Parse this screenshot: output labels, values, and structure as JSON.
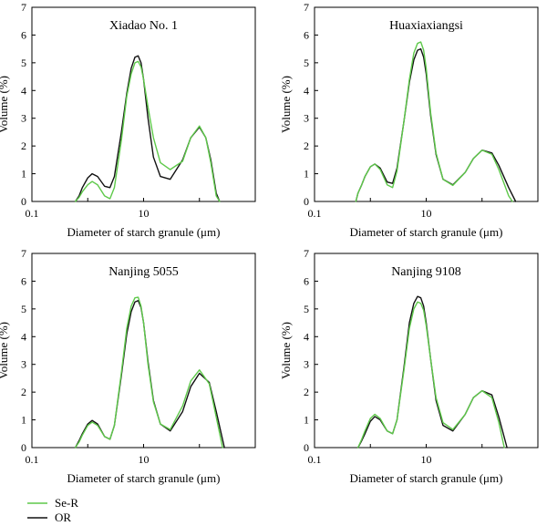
{
  "figure": {
    "series_colors": {
      "Se-R": "#5ec94a",
      "OR": "#111111"
    },
    "legend": [
      {
        "name": "Se-R",
        "color": "#5ec94a"
      },
      {
        "name": "OR",
        "color": "#111111"
      }
    ]
  },
  "chart_data": [
    {
      "type": "line",
      "title": "Xiadao No. 1",
      "xlabel": "Diameter of starch granule (μm)",
      "ylabel": "Volume (%)",
      "xscale": "log",
      "xlim": [
        0.1,
        1000
      ],
      "ylim": [
        0,
        7
      ],
      "x_tick_labels": [
        "0.1",
        "10"
      ],
      "y_ticks": [
        0,
        1,
        2,
        3,
        4,
        5,
        6,
        7
      ],
      "series": [
        {
          "name": "OR",
          "color": "#111111",
          "x": [
            0.6,
            0.7,
            0.8,
            1.0,
            1.2,
            1.5,
            2.0,
            2.5,
            3.0,
            4.0,
            5.0,
            6.0,
            7.0,
            8.0,
            9.0,
            10,
            12,
            15,
            20,
            30,
            50,
            70,
            100,
            130,
            160,
            200,
            230
          ],
          "y": [
            0,
            0.2,
            0.5,
            0.85,
            1.0,
            0.9,
            0.55,
            0.5,
            0.9,
            2.5,
            3.9,
            4.8,
            5.2,
            5.25,
            5.0,
            4.4,
            3.0,
            1.6,
            0.9,
            0.8,
            1.5,
            2.3,
            2.68,
            2.3,
            1.5,
            0.3,
            0
          ]
        },
        {
          "name": "Se-R",
          "color": "#5ec94a",
          "x": [
            0.6,
            0.7,
            0.8,
            1.0,
            1.2,
            1.5,
            2.0,
            2.5,
            3.0,
            4.0,
            5.0,
            6.0,
            7.0,
            8.0,
            9.0,
            10,
            12,
            15,
            20,
            30,
            50,
            70,
            100,
            130,
            160,
            200,
            230
          ],
          "y": [
            0,
            0.15,
            0.35,
            0.6,
            0.72,
            0.6,
            0.2,
            0.1,
            0.5,
            2.2,
            3.8,
            4.6,
            5.0,
            5.05,
            4.85,
            4.4,
            3.4,
            2.3,
            1.4,
            1.15,
            1.45,
            2.3,
            2.72,
            2.3,
            1.4,
            0.2,
            0
          ]
        }
      ]
    },
    {
      "type": "line",
      "title": "Huaxiaxiangsi",
      "xlabel": "Diameter of starch granule (μm)",
      "ylabel": "Volume (%)",
      "xscale": "log",
      "xlim": [
        0.1,
        1000
      ],
      "ylim": [
        0,
        7
      ],
      "x_tick_labels": [
        "0.1",
        "10"
      ],
      "y_ticks": [
        0,
        1,
        2,
        3,
        4,
        5,
        6,
        7
      ],
      "series": [
        {
          "name": "OR",
          "color": "#111111",
          "x": [
            0.55,
            0.6,
            0.7,
            0.8,
            1.0,
            1.2,
            1.5,
            2.0,
            2.5,
            3.0,
            4.0,
            5.0,
            6.0,
            7.0,
            8.0,
            9.0,
            10,
            12,
            15,
            20,
            30,
            50,
            70,
            100,
            150,
            200,
            300,
            400
          ],
          "y": [
            0,
            0.3,
            0.6,
            0.9,
            1.25,
            1.35,
            1.2,
            0.7,
            0.65,
            1.2,
            2.9,
            4.3,
            5.1,
            5.45,
            5.5,
            5.2,
            4.6,
            3.1,
            1.7,
            0.8,
            0.6,
            1.05,
            1.55,
            1.85,
            1.75,
            1.3,
            0.5,
            0
          ]
        },
        {
          "name": "Se-R",
          "color": "#5ec94a",
          "x": [
            0.55,
            0.6,
            0.7,
            0.8,
            1.0,
            1.2,
            1.5,
            2.0,
            2.5,
            3.0,
            4.0,
            5.0,
            6.0,
            7.0,
            8.0,
            9.0,
            10,
            12,
            15,
            20,
            30,
            50,
            70,
            100,
            150,
            200,
            300,
            350
          ],
          "y": [
            0,
            0.3,
            0.6,
            0.9,
            1.25,
            1.35,
            1.15,
            0.6,
            0.5,
            1.1,
            2.9,
            4.4,
            5.35,
            5.7,
            5.75,
            5.45,
            4.8,
            3.2,
            1.75,
            0.8,
            0.58,
            1.05,
            1.55,
            1.85,
            1.7,
            1.15,
            0.2,
            0
          ]
        }
      ]
    },
    {
      "type": "line",
      "title": "Nanjing 5055",
      "xlabel": "Diameter of starch granule (μm)",
      "ylabel": "Volume (%)",
      "xscale": "log",
      "xlim": [
        0.1,
        1000
      ],
      "ylim": [
        0,
        7
      ],
      "x_tick_labels": [
        "0.1",
        "10"
      ],
      "y_ticks": [
        0,
        1,
        2,
        3,
        4,
        5,
        6,
        7
      ],
      "series": [
        {
          "name": "OR",
          "color": "#111111",
          "x": [
            0.6,
            0.7,
            0.8,
            1.0,
            1.2,
            1.5,
            2.0,
            2.5,
            3.0,
            4.0,
            5.0,
            6.0,
            7.0,
            8.0,
            9.0,
            10,
            12,
            15,
            20,
            30,
            50,
            70,
            100,
            150,
            200,
            280
          ],
          "y": [
            0,
            0.25,
            0.5,
            0.85,
            0.98,
            0.85,
            0.4,
            0.3,
            0.8,
            2.6,
            4.1,
            4.9,
            5.25,
            5.3,
            5.05,
            4.5,
            3.1,
            1.7,
            0.85,
            0.6,
            1.3,
            2.2,
            2.68,
            2.35,
            1.3,
            0
          ]
        },
        {
          "name": "Se-R",
          "color": "#5ec94a",
          "x": [
            0.6,
            0.7,
            0.8,
            1.0,
            1.2,
            1.5,
            2.0,
            2.5,
            3.0,
            4.0,
            5.0,
            6.0,
            7.0,
            8.0,
            9.0,
            10,
            12,
            15,
            20,
            30,
            50,
            70,
            100,
            150,
            200,
            260
          ],
          "y": [
            0,
            0.2,
            0.45,
            0.8,
            0.92,
            0.8,
            0.4,
            0.3,
            0.8,
            2.7,
            4.3,
            5.1,
            5.4,
            5.42,
            5.1,
            4.5,
            3.0,
            1.65,
            0.85,
            0.65,
            1.5,
            2.4,
            2.8,
            2.3,
            1.1,
            0
          ]
        }
      ]
    },
    {
      "type": "line",
      "title": "Nanjing 9108",
      "xlabel": "Diameter of starch granule (μm)",
      "ylabel": "Volume (%)",
      "xscale": "log",
      "xlim": [
        0.1,
        1000
      ],
      "ylim": [
        0,
        7
      ],
      "x_tick_labels": [
        "0.1",
        "10"
      ],
      "y_ticks": [
        0,
        1,
        2,
        3,
        4,
        5,
        6,
        7
      ],
      "series": [
        {
          "name": "OR",
          "color": "#111111",
          "x": [
            0.6,
            0.7,
            0.8,
            1.0,
            1.2,
            1.5,
            2.0,
            2.5,
            3.0,
            4.0,
            5.0,
            6.0,
            7.0,
            8.0,
            9.0,
            10,
            12,
            15,
            20,
            30,
            50,
            70,
            100,
            150,
            200,
            280
          ],
          "y": [
            0,
            0.25,
            0.5,
            0.95,
            1.12,
            1.0,
            0.6,
            0.5,
            1.0,
            2.9,
            4.5,
            5.2,
            5.45,
            5.4,
            5.1,
            4.5,
            3.2,
            1.7,
            0.8,
            0.6,
            1.2,
            1.8,
            2.05,
            1.9,
            1.1,
            0
          ]
        },
        {
          "name": "Se-R",
          "color": "#5ec94a",
          "x": [
            0.6,
            0.7,
            0.8,
            1.0,
            1.2,
            1.5,
            2.0,
            2.5,
            3.0,
            4.0,
            5.0,
            6.0,
            7.0,
            8.0,
            9.0,
            10,
            12,
            15,
            20,
            30,
            50,
            70,
            100,
            150,
            200,
            250
          ],
          "y": [
            0,
            0.3,
            0.6,
            1.05,
            1.2,
            1.05,
            0.6,
            0.5,
            1.0,
            2.8,
            4.3,
            5.0,
            5.25,
            5.2,
            4.95,
            4.4,
            3.2,
            1.8,
            0.9,
            0.65,
            1.2,
            1.8,
            2.05,
            1.8,
            0.9,
            0
          ]
        }
      ]
    }
  ]
}
